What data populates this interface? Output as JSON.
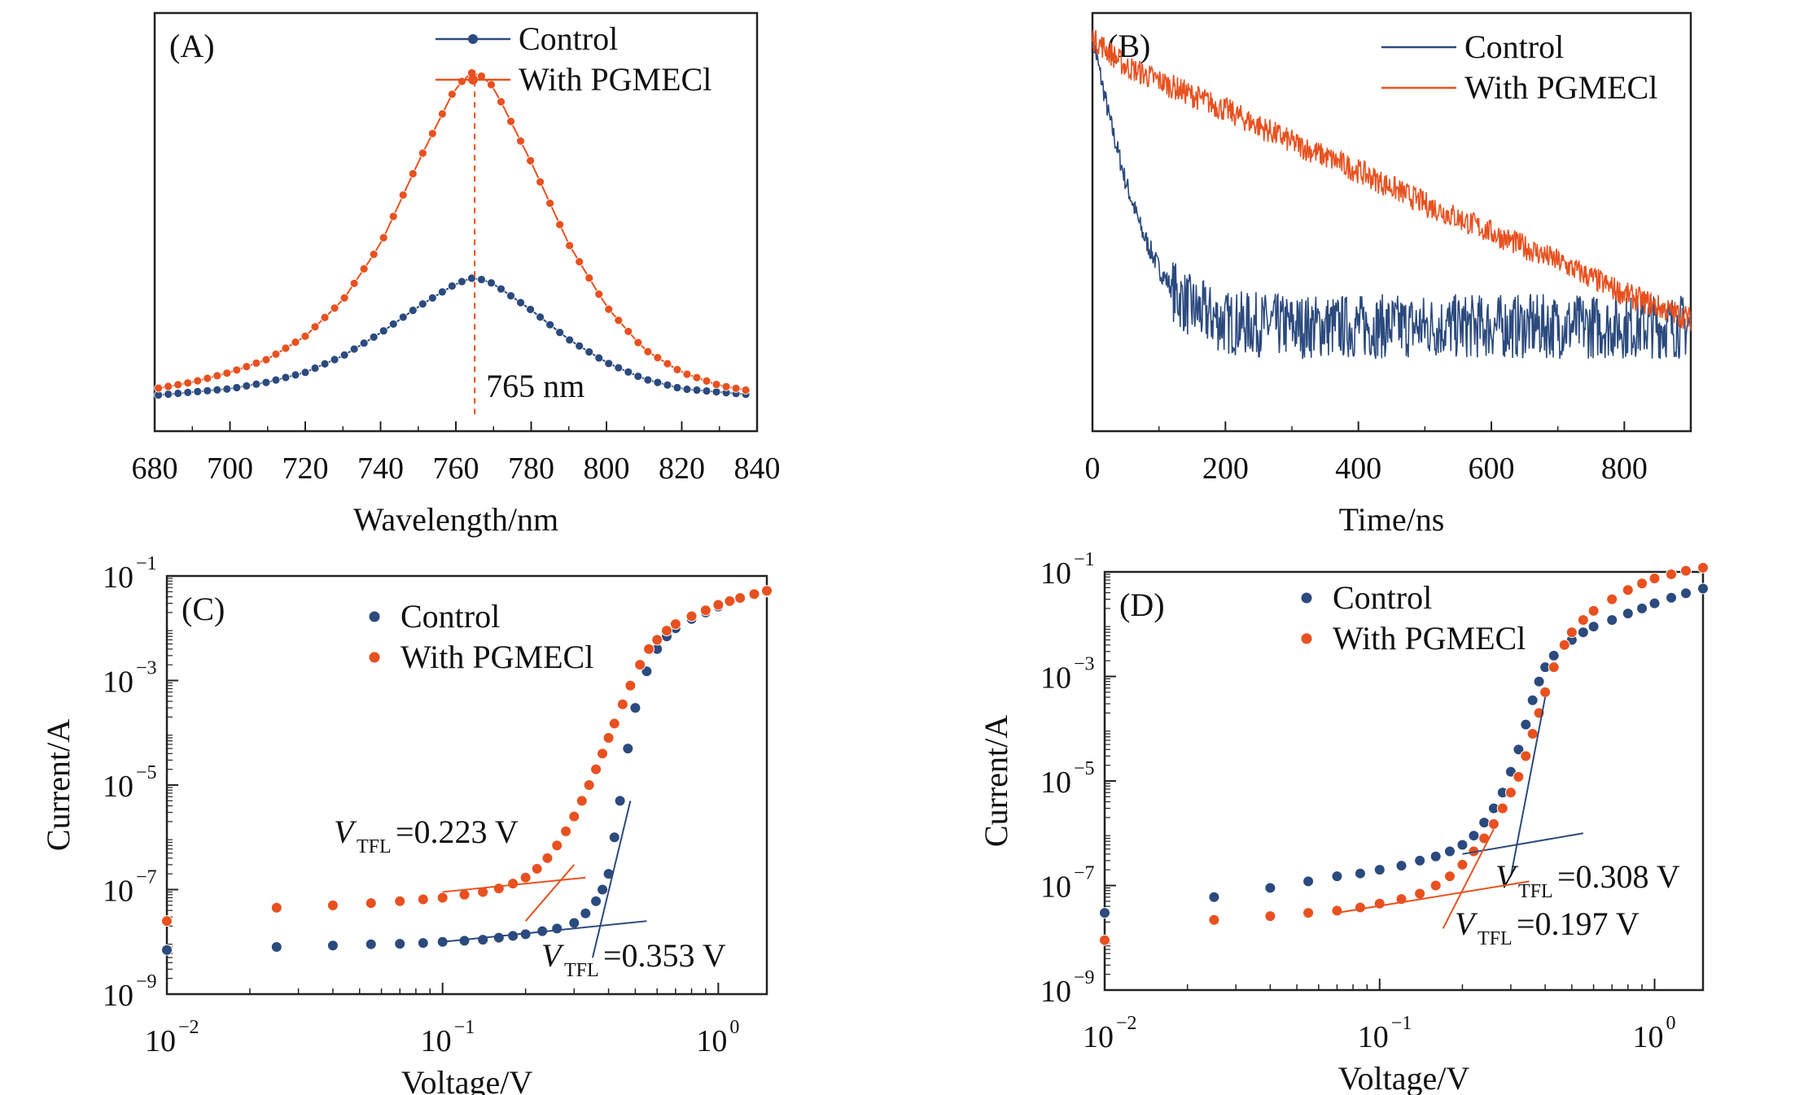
{
  "colors": {
    "control": "#2b4a7e",
    "pgmecl": "#e8511f",
    "axis": "#222222"
  },
  "legend": {
    "control": "Control",
    "pgmecl": "With PGMECl"
  },
  "chart_data": [
    {
      "panel": "(A)",
      "type": "line",
      "title": "",
      "xlabel": "Wavelength/nm",
      "ylabel": "",
      "xlim": [
        680,
        840
      ],
      "ylim": [
        0,
        1.1
      ],
      "xticks": [
        "680",
        "700",
        "720",
        "740",
        "760",
        "780",
        "800",
        "820",
        "840"
      ],
      "legend_position": "top-right",
      "marker": "circle",
      "peak_annotation": "765 nm",
      "peak_x": 765,
      "series": [
        {
          "name": "Control",
          "x": [
            680,
            690,
            700,
            710,
            720,
            730,
            740,
            750,
            760,
            765,
            770,
            780,
            790,
            800,
            810,
            820,
            830,
            840
          ],
          "values": [
            0.01,
            0.02,
            0.03,
            0.05,
            0.08,
            0.13,
            0.2,
            0.28,
            0.35,
            0.37,
            0.35,
            0.27,
            0.18,
            0.11,
            0.06,
            0.03,
            0.02,
            0.01
          ]
        },
        {
          "name": "With PGMECl",
          "x": [
            680,
            690,
            700,
            710,
            720,
            730,
            740,
            750,
            760,
            765,
            770,
            780,
            790,
            800,
            810,
            820,
            830,
            840
          ],
          "values": [
            0.03,
            0.05,
            0.08,
            0.12,
            0.19,
            0.3,
            0.47,
            0.72,
            0.95,
            1.0,
            0.95,
            0.72,
            0.47,
            0.28,
            0.15,
            0.08,
            0.04,
            0.02
          ]
        }
      ]
    },
    {
      "panel": "(B)",
      "type": "line",
      "title": "",
      "xlabel": "Time/ns",
      "ylabel": "",
      "xlim": [
        0,
        900
      ],
      "ylim": [
        0,
        1
      ],
      "xticks": [
        "0",
        "200",
        "400",
        "600",
        "800"
      ],
      "legend_position": "top-right",
      "series": [
        {
          "name": "Control",
          "x": [
            0,
            25,
            50,
            75,
            100,
            125,
            150,
            175,
            200,
            300,
            400,
            500,
            600,
            700,
            800,
            900
          ],
          "values": [
            1.0,
            0.78,
            0.6,
            0.46,
            0.36,
            0.29,
            0.25,
            0.23,
            0.21,
            0.2,
            0.2,
            0.2,
            0.2,
            0.2,
            0.2,
            0.2
          ]
        },
        {
          "name": "With PGMECl",
          "x": [
            0,
            50,
            100,
            200,
            300,
            400,
            500,
            600,
            700,
            800,
            900
          ],
          "values": [
            1.0,
            0.92,
            0.88,
            0.8,
            0.71,
            0.63,
            0.54,
            0.46,
            0.38,
            0.29,
            0.22
          ]
        }
      ]
    },
    {
      "panel": "(C)",
      "type": "scatter",
      "title": "",
      "xlabel": "Voltage/V",
      "ylabel": "Current/A",
      "xscale": "log",
      "yscale": "log",
      "xlim": [
        0.01,
        1.5
      ],
      "ylim": [
        1e-09,
        0.1
      ],
      "xticks": [
        "10",
        "10",
        "10"
      ],
      "xtick_exponents": [
        "−2",
        "−1",
        "0"
      ],
      "yticks": [
        "10",
        "10",
        "10",
        "10",
        "10"
      ],
      "ytick_exponents": [
        "−1",
        "−3",
        "−5",
        "−7",
        "−9"
      ],
      "legend_position": "top-center",
      "annotations": [
        {
          "label": "V",
          "subscript": "TFL",
          "text": "=0.223 V",
          "series": "With PGMECl",
          "voltage": 0.223
        },
        {
          "label": "V",
          "subscript": "TFL",
          "text": "=0.353 V",
          "series": "Control",
          "voltage": 0.353
        }
      ],
      "series": [
        {
          "name": "Control",
          "x": [
            0.01,
            0.025,
            0.04,
            0.055,
            0.07,
            0.085,
            0.1,
            0.12,
            0.14,
            0.16,
            0.18,
            0.2,
            0.23,
            0.26,
            0.3,
            0.33,
            0.36,
            0.38,
            0.4,
            0.42,
            0.44,
            0.47,
            0.5,
            0.55,
            0.6,
            0.65,
            0.7,
            0.8,
            0.9,
            1.0,
            1.1,
            1.2,
            1.35,
            1.5
          ],
          "values": [
            7e-09,
            8e-09,
            8.5e-09,
            9e-09,
            9.2e-09,
            9.5e-09,
            1e-08,
            1.05e-08,
            1.1e-08,
            1.2e-08,
            1.3e-08,
            1.4e-08,
            1.6e-08,
            1.8e-08,
            2.3e-08,
            3.5e-08,
            6e-08,
            1e-07,
            2e-07,
            1e-06,
            5e-06,
            5e-05,
            0.0003,
            0.0015,
            0.004,
            0.007,
            0.01,
            0.015,
            0.02,
            0.026,
            0.032,
            0.038,
            0.045,
            0.05
          ]
        },
        {
          "name": "With PGMECl",
          "x": [
            0.01,
            0.025,
            0.04,
            0.055,
            0.07,
            0.085,
            0.1,
            0.12,
            0.14,
            0.16,
            0.18,
            0.2,
            0.22,
            0.24,
            0.26,
            0.28,
            0.3,
            0.32,
            0.34,
            0.36,
            0.38,
            0.4,
            0.42,
            0.45,
            0.48,
            0.52,
            0.56,
            0.6,
            0.65,
            0.7,
            0.8,
            0.9,
            1.0,
            1.1,
            1.2,
            1.35,
            1.5
          ],
          "values": [
            2.5e-08,
            4.5e-08,
            5e-08,
            5.5e-08,
            6e-08,
            6.5e-08,
            7e-08,
            8e-08,
            9e-08,
            1.05e-07,
            1.3e-07,
            1.7e-07,
            2.5e-07,
            4e-07,
            7e-07,
            1.3e-06,
            2.5e-06,
            5e-06,
            1e-05,
            2e-05,
            4e-05,
            8e-05,
            0.00015,
            0.00035,
            0.0008,
            0.002,
            0.004,
            0.006,
            0.009,
            0.012,
            0.017,
            0.022,
            0.028,
            0.033,
            0.038,
            0.045,
            0.052
          ]
        }
      ]
    },
    {
      "panel": "(D)",
      "type": "scatter",
      "title": "",
      "xlabel": "Voltage/V",
      "ylabel": "Current/A",
      "xscale": "log",
      "yscale": "log",
      "xlim": [
        0.01,
        1.5
      ],
      "ylim": [
        1e-09,
        0.1
      ],
      "xticks": [
        "10",
        "10",
        "10"
      ],
      "xtick_exponents": [
        "−2",
        "−1",
        "0"
      ],
      "yticks": [
        "10",
        "10",
        "10",
        "10",
        "10"
      ],
      "ytick_exponents": [
        "−1",
        "−3",
        "−5",
        "−7",
        "−9"
      ],
      "legend_position": "top-center",
      "annotations": [
        {
          "label": "V",
          "subscript": "TFL",
          "text": "=0.308 V",
          "series": "Control",
          "voltage": 0.308
        },
        {
          "label": "V",
          "subscript": "TFL",
          "text": "=0.197 V",
          "series": "With PGMECl",
          "voltage": 0.197
        }
      ],
      "series": [
        {
          "name": "Control",
          "x": [
            0.01,
            0.025,
            0.04,
            0.055,
            0.07,
            0.085,
            0.1,
            0.12,
            0.14,
            0.16,
            0.18,
            0.2,
            0.22,
            0.24,
            0.26,
            0.28,
            0.3,
            0.32,
            0.34,
            0.36,
            0.38,
            0.4,
            0.43,
            0.47,
            0.5,
            0.55,
            0.6,
            0.7,
            0.8,
            0.9,
            1.0,
            1.15,
            1.3,
            1.5
          ],
          "values": [
            3e-08,
            6e-08,
            9e-08,
            1.2e-07,
            1.5e-07,
            1.7e-07,
            2e-07,
            2.4e-07,
            3e-07,
            3.6e-07,
            4.5e-07,
            6e-07,
            9e-07,
            1.6e-06,
            3e-06,
            6e-06,
            1.5e-05,
            4e-05,
            0.00012,
            0.00035,
            0.0008,
            0.0015,
            0.0025,
            0.004,
            0.005,
            0.007,
            0.009,
            0.012,
            0.016,
            0.02,
            0.025,
            0.032,
            0.039,
            0.048
          ]
        },
        {
          "name": "With PGMECl",
          "x": [
            0.01,
            0.025,
            0.04,
            0.055,
            0.07,
            0.085,
            0.1,
            0.12,
            0.14,
            0.16,
            0.18,
            0.2,
            0.22,
            0.24,
            0.26,
            0.28,
            0.3,
            0.32,
            0.34,
            0.36,
            0.38,
            0.4,
            0.43,
            0.47,
            0.5,
            0.55,
            0.6,
            0.7,
            0.8,
            0.9,
            1.0,
            1.15,
            1.3,
            1.5
          ],
          "values": [
            9e-09,
            2.2e-08,
            2.6e-08,
            3e-08,
            3.3e-08,
            3.8e-08,
            4.5e-08,
            5.5e-08,
            7e-08,
            1e-07,
            1.5e-07,
            2.5e-07,
            4.5e-07,
            8e-07,
            1.5e-06,
            3e-06,
            6e-06,
            1.2e-05,
            3e-05,
            8e-05,
            0.0002,
            0.0005,
            0.0015,
            0.004,
            0.007,
            0.012,
            0.018,
            0.03,
            0.045,
            0.06,
            0.075,
            0.09,
            0.105,
            0.12
          ]
        }
      ]
    }
  ]
}
